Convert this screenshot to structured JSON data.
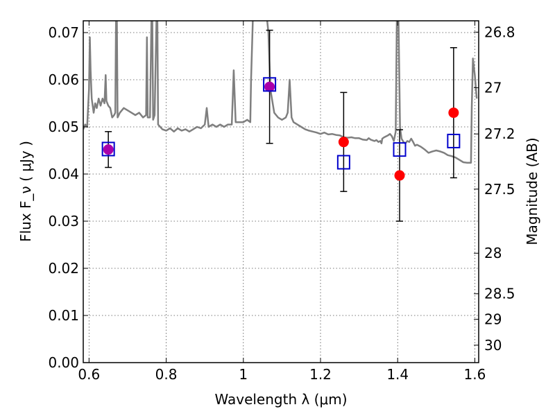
{
  "chart_data": {
    "type": "scatter",
    "title": "",
    "xlabel": "Wavelength  λ (μm)",
    "ylabel": "Flux  F_ν  ( μJy )",
    "ylabel_right": "Magnitude (AB)",
    "xlim": [
      0.585,
      1.61
    ],
    "ylim": [
      0.0,
      0.0725
    ],
    "grid": true,
    "x_ticks": [
      0.6,
      0.8,
      1.0,
      1.2,
      1.4,
      1.6
    ],
    "x_tick_labels": [
      "0.6",
      "0.8",
      "1",
      "1.2",
      "1.4",
      "1.6"
    ],
    "y_ticks": [
      0.0,
      0.01,
      0.02,
      0.03,
      0.04,
      0.05,
      0.06,
      0.07
    ],
    "y_tick_labels": [
      "0.00",
      "0.01",
      "0.02",
      "0.03",
      "0.04",
      "0.05",
      "0.06",
      "0.07"
    ],
    "right_ticks": [
      {
        "label": "26.8",
        "flux": 0.0701
      },
      {
        "label": "27",
        "flux": 0.0583
      },
      {
        "label": "27.2",
        "flux": 0.0485
      },
      {
        "label": "27.5",
        "flux": 0.0368
      },
      {
        "label": "28",
        "flux": 0.0232
      },
      {
        "label": "28.5",
        "flux": 0.0146
      },
      {
        "label": "29",
        "flux": 0.0092
      },
      {
        "label": "30",
        "flux": 0.0037
      }
    ],
    "series": [
      {
        "role": "model",
        "style": "line",
        "color": "#7f7f7f",
        "points": [
          [
            0.585,
            0.0495
          ],
          [
            0.59,
            0.0505
          ],
          [
            0.595,
            0.05
          ],
          [
            0.6,
            0.058
          ],
          [
            0.602,
            0.069
          ],
          [
            0.604,
            0.062
          ],
          [
            0.607,
            0.056
          ],
          [
            0.612,
            0.053
          ],
          [
            0.616,
            0.055
          ],
          [
            0.62,
            0.054
          ],
          [
            0.625,
            0.056
          ],
          [
            0.63,
            0.0545
          ],
          [
            0.635,
            0.056
          ],
          [
            0.64,
            0.055
          ],
          [
            0.643,
            0.061
          ],
          [
            0.645,
            0.0555
          ],
          [
            0.65,
            0.0545
          ],
          [
            0.655,
            0.054
          ],
          [
            0.66,
            0.052
          ],
          [
            0.665,
            0.0525
          ],
          [
            0.668,
            0.053
          ],
          [
            0.67,
            0.074
          ],
          [
            0.672,
            0.074
          ],
          [
            0.674,
            0.052
          ],
          [
            0.68,
            0.053
          ],
          [
            0.69,
            0.054
          ],
          [
            0.7,
            0.0535
          ],
          [
            0.71,
            0.053
          ],
          [
            0.72,
            0.0525
          ],
          [
            0.73,
            0.053
          ],
          [
            0.74,
            0.052
          ],
          [
            0.748,
            0.0525
          ],
          [
            0.75,
            0.069
          ],
          [
            0.752,
            0.052
          ],
          [
            0.758,
            0.052
          ],
          [
            0.762,
            0.074
          ],
          [
            0.764,
            0.074
          ],
          [
            0.766,
            0.0515
          ],
          [
            0.77,
            0.0525
          ],
          [
            0.775,
            0.074
          ],
          [
            0.777,
            0.074
          ],
          [
            0.779,
            0.0505
          ],
          [
            0.79,
            0.0495
          ],
          [
            0.8,
            0.0492
          ],
          [
            0.81,
            0.0497
          ],
          [
            0.82,
            0.049
          ],
          [
            0.83,
            0.0497
          ],
          [
            0.84,
            0.0492
          ],
          [
            0.85,
            0.0495
          ],
          [
            0.86,
            0.049
          ],
          [
            0.87,
            0.0495
          ],
          [
            0.88,
            0.05
          ],
          [
            0.89,
            0.0497
          ],
          [
            0.9,
            0.0505
          ],
          [
            0.905,
            0.054
          ],
          [
            0.91,
            0.05
          ],
          [
            0.92,
            0.0505
          ],
          [
            0.93,
            0.05
          ],
          [
            0.94,
            0.0505
          ],
          [
            0.95,
            0.05
          ],
          [
            0.96,
            0.0505
          ],
          [
            0.97,
            0.0505
          ],
          [
            0.975,
            0.062
          ],
          [
            0.98,
            0.051
          ],
          [
            0.99,
            0.051
          ],
          [
            1.0,
            0.051
          ],
          [
            1.01,
            0.0515
          ],
          [
            1.018,
            0.051
          ],
          [
            1.02,
            0.06
          ],
          [
            1.025,
            0.074
          ],
          [
            1.03,
            0.074
          ],
          [
            1.035,
            0.074
          ],
          [
            1.04,
            0.074
          ],
          [
            1.045,
            0.074
          ],
          [
            1.05,
            0.074
          ],
          [
            1.055,
            0.074
          ],
          [
            1.06,
            0.074
          ],
          [
            1.065,
            0.07
          ],
          [
            1.07,
            0.058
          ],
          [
            1.08,
            0.053
          ],
          [
            1.09,
            0.052
          ],
          [
            1.1,
            0.0515
          ],
          [
            1.11,
            0.052
          ],
          [
            1.115,
            0.053
          ],
          [
            1.12,
            0.06
          ],
          [
            1.125,
            0.052
          ],
          [
            1.13,
            0.051
          ],
          [
            1.14,
            0.0505
          ],
          [
            1.15,
            0.05
          ],
          [
            1.16,
            0.0495
          ],
          [
            1.17,
            0.0492
          ],
          [
            1.18,
            0.049
          ],
          [
            1.19,
            0.0488
          ],
          [
            1.2,
            0.0485
          ],
          [
            1.21,
            0.0488
          ],
          [
            1.22,
            0.0484
          ],
          [
            1.23,
            0.0485
          ],
          [
            1.24,
            0.0483
          ],
          [
            1.25,
            0.0482
          ],
          [
            1.26,
            0.0478
          ],
          [
            1.27,
            0.0477
          ],
          [
            1.28,
            0.0478
          ],
          [
            1.29,
            0.0476
          ],
          [
            1.3,
            0.0476
          ],
          [
            1.31,
            0.0473
          ],
          [
            1.32,
            0.0472
          ],
          [
            1.325,
            0.0476
          ],
          [
            1.33,
            0.0473
          ],
          [
            1.34,
            0.047
          ],
          [
            1.345,
            0.0472
          ],
          [
            1.35,
            0.0468
          ],
          [
            1.355,
            0.047
          ],
          [
            1.358,
            0.0465
          ],
          [
            1.36,
            0.0475
          ],
          [
            1.365,
            0.0478
          ],
          [
            1.37,
            0.048
          ],
          [
            1.375,
            0.0482
          ],
          [
            1.38,
            0.0485
          ],
          [
            1.385,
            0.048
          ],
          [
            1.39,
            0.047
          ],
          [
            1.395,
            0.049
          ],
          [
            1.398,
            0.074
          ],
          [
            1.402,
            0.074
          ],
          [
            1.406,
            0.05
          ],
          [
            1.41,
            0.0475
          ],
          [
            1.415,
            0.0468
          ],
          [
            1.42,
            0.0465
          ],
          [
            1.425,
            0.047
          ],
          [
            1.43,
            0.0468
          ],
          [
            1.435,
            0.0475
          ],
          [
            1.44,
            0.0468
          ],
          [
            1.445,
            0.046
          ],
          [
            1.45,
            0.0462
          ],
          [
            1.46,
            0.0458
          ],
          [
            1.465,
            0.0455
          ],
          [
            1.47,
            0.0452
          ],
          [
            1.48,
            0.0445
          ],
          [
            1.49,
            0.0448
          ],
          [
            1.5,
            0.045
          ],
          [
            1.51,
            0.0448
          ],
          [
            1.52,
            0.0445
          ],
          [
            1.53,
            0.044
          ],
          [
            1.54,
            0.0438
          ],
          [
            1.55,
            0.0435
          ],
          [
            1.56,
            0.043
          ],
          [
            1.57,
            0.0425
          ],
          [
            1.58,
            0.0424
          ],
          [
            1.59,
            0.0424
          ],
          [
            1.592,
            0.054
          ],
          [
            1.595,
            0.0645
          ],
          [
            1.6,
            0.061
          ],
          [
            1.605,
            0.056
          ]
        ]
      },
      {
        "role": "observed",
        "style": "circle",
        "color": "#ff0000",
        "points": [
          {
            "x": 0.65,
            "y": 0.0452,
            "err": 0.0038
          },
          {
            "x": 1.068,
            "y": 0.0585,
            "err": 0.012
          },
          {
            "x": 1.26,
            "y": 0.0468,
            "err": 0.0105
          },
          {
            "x": 1.405,
            "y": 0.0397,
            "err": 0.0097
          },
          {
            "x": 1.545,
            "y": 0.053,
            "err": 0.0138
          }
        ]
      },
      {
        "role": "model_bandpass",
        "style": "open-square",
        "color": "#0000cc",
        "points": [
          {
            "x": 0.65,
            "y": 0.0453
          },
          {
            "x": 1.068,
            "y": 0.059
          },
          {
            "x": 1.26,
            "y": 0.0425
          },
          {
            "x": 1.405,
            "y": 0.0452
          },
          {
            "x": 1.545,
            "y": 0.047
          }
        ]
      }
    ],
    "overlap_color": "#aa00aa"
  }
}
